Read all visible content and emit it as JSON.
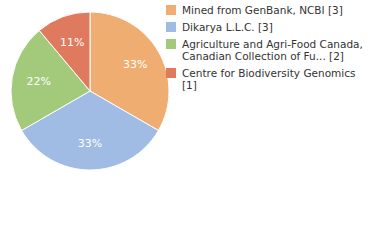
{
  "chart_data": {
    "type": "pie",
    "categories": [
      "Mined from GenBank, NCBI [3]",
      "Dikarya L.L.C. [3]",
      "Agriculture and Agri-Food Canada, Canadian Collection of Fu... [2]",
      "Centre for Biodiversity Genomics [1]"
    ],
    "values": [
      33,
      33,
      22,
      11
    ],
    "value_labels": [
      "33%",
      "33%",
      "22%",
      "11%"
    ],
    "colors": [
      "#f0ad72",
      "#a0bce4",
      "#a3c97a",
      "#e07a5f"
    ],
    "data_labels": true,
    "legend": "right"
  }
}
